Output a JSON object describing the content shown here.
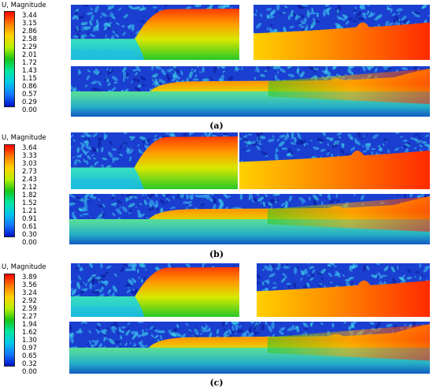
{
  "colors": [
    "#ff0000",
    "#ff7a00",
    "#ffd400",
    "#b8f000",
    "#18c418",
    "#00e6a0",
    "#00c8e8",
    "#1478ff",
    "#0010c8"
  ],
  "panels": [
    {
      "id": "a",
      "legend_title": "U, Magnitude",
      "ticks": [
        "3.44",
        "3.15",
        "2.86",
        "2.58",
        "2.29",
        "2.01",
        "1.72",
        "1.43",
        "1.15",
        "0.86",
        "0.57",
        "0.29",
        "0.00"
      ],
      "caption": "(a)"
    },
    {
      "id": "b",
      "legend_title": "U, Magnitude",
      "ticks": [
        "3.64",
        "3.33",
        "3.03",
        "2.73",
        "2.43",
        "2.12",
        "1.82",
        "1.52",
        "1.21",
        "0.91",
        "0.61",
        "0.30",
        "0.00"
      ],
      "caption": "(b)"
    },
    {
      "id": "c",
      "legend_title": "U, Magnitude",
      "ticks": [
        "3.89",
        "3.56",
        "3.24",
        "2.92",
        "2.59",
        "2.27",
        "1.94",
        "1.62",
        "1.30",
        "0.97",
        "0.65",
        "0.32",
        "0.00"
      ],
      "caption": "(c)"
    }
  ]
}
